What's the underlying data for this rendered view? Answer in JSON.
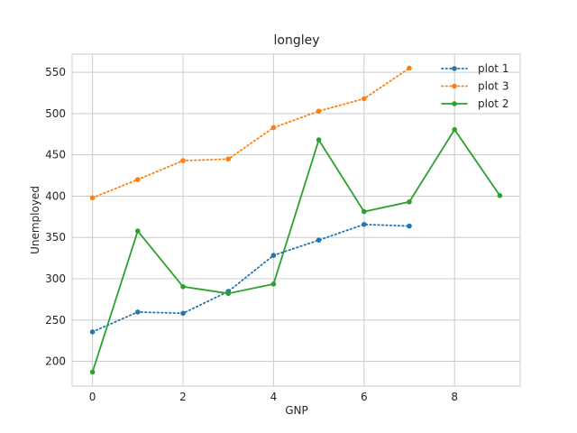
{
  "chart_data": {
    "type": "line",
    "title": "longley",
    "xlabel": "GNP",
    "ylabel": "Unemployed",
    "xlim": [
      -0.45,
      9.45
    ],
    "ylim": [
      170,
      572
    ],
    "xticks": [
      0,
      2,
      4,
      6,
      8
    ],
    "yticks": [
      200,
      250,
      300,
      350,
      400,
      450,
      500,
      550
    ],
    "grid": true,
    "legend_position": "top-right",
    "series": [
      {
        "name": "plot 1",
        "color": "#1f77b4",
        "linestyle": "dotted",
        "marker": "circle",
        "x": [
          0,
          1,
          2,
          3,
          4,
          5,
          6,
          7
        ],
        "y": [
          235.6,
          259.7,
          258.2,
          284.6,
          328.3,
          346.8,
          365.8,
          363.8
        ]
      },
      {
        "name": "plot 3",
        "color": "#ff7f0e",
        "linestyle": "dotted",
        "marker": "circle",
        "x": [
          0,
          1,
          2,
          3,
          4,
          5,
          6,
          7
        ],
        "y": [
          398.0,
          420.0,
          443.0,
          445.0,
          483.0,
          503.0,
          518.0,
          555.0
        ]
      },
      {
        "name": "plot 2",
        "color": "#2ca02c",
        "linestyle": "solid",
        "marker": "circle",
        "x": [
          0,
          1,
          2,
          3,
          4,
          5,
          6,
          7,
          8,
          9
        ],
        "y": [
          187.0,
          357.8,
          290.4,
          282.2,
          293.6,
          468.1,
          381.3,
          393.1,
          480.6,
          400.7
        ]
      }
    ]
  }
}
